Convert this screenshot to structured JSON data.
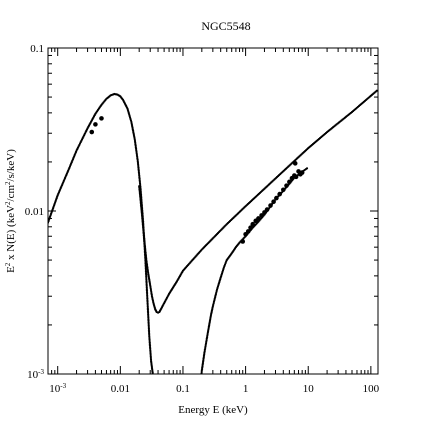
{
  "chart_data": {
    "type": "line",
    "title": "NGC5548",
    "xlabel": "Energy E (keV)",
    "ylabel": {
      "prefix": "E",
      "sup1": "2",
      "mid": " x N(E) (keV",
      "sup2": "2",
      "suffix": "/cm",
      "sup3": "2",
      "tail": "/s/keV)"
    },
    "xscale": "log",
    "yscale": "log",
    "xlim": [
      0.0007,
      130
    ],
    "ylim": [
      0.001,
      0.1
    ],
    "x_ticks": [
      {
        "value": 0.001,
        "base": "10",
        "exp": "-3"
      },
      {
        "value": 0.01,
        "label": "0.01"
      },
      {
        "value": 0.1,
        "label": "0.1"
      },
      {
        "value": 1,
        "label": "1"
      },
      {
        "value": 10,
        "label": "10"
      },
      {
        "value": 100,
        "label": "100"
      }
    ],
    "y_ticks": [
      {
        "value": 0.001,
        "base": "10",
        "exp": "-3"
      },
      {
        "value": 0.01,
        "label": "0.01"
      },
      {
        "value": 0.1,
        "label": "0.1"
      }
    ],
    "series": [
      {
        "style": "dotted-model",
        "x": [
          0.0007,
          0.001,
          0.0015,
          0.002,
          0.003,
          0.004,
          0.005,
          0.006,
          0.007,
          0.008,
          0.009,
          0.01,
          0.011,
          0.013,
          0.015,
          0.017,
          0.019,
          0.021,
          0.023,
          0.025,
          0.027,
          0.029,
          0.031,
          0.033,
          0.035
        ],
        "y": [
          0.0085,
          0.0125,
          0.018,
          0.0235,
          0.0322,
          0.0395,
          0.0448,
          0.0488,
          0.0512,
          0.0522,
          0.0518,
          0.0505,
          0.0482,
          0.0425,
          0.0352,
          0.0275,
          0.0202,
          0.0138,
          0.0088,
          0.0052,
          0.0029,
          0.0017,
          0.0012,
          0.001,
          0.0009
        ]
      },
      {
        "style": "dotted-model",
        "x": [
          0.02,
          0.021,
          0.022,
          0.023,
          0.024,
          0.025,
          0.026,
          0.028,
          0.03,
          0.032,
          0.034,
          0.036,
          0.038,
          0.04,
          0.042,
          0.045,
          0.05,
          0.06,
          0.08,
          0.1,
          0.2,
          0.5,
          1,
          2,
          5,
          10,
          20,
          50,
          130
        ],
        "y": [
          0.0142,
          0.0118,
          0.0098,
          0.0081,
          0.0068,
          0.0058,
          0.005,
          0.0041,
          0.0035,
          0.003,
          0.0027,
          0.0025,
          0.0024,
          0.00238,
          0.0024,
          0.00252,
          0.00272,
          0.0031,
          0.0037,
          0.0043,
          0.0058,
          0.0083,
          0.0107,
          0.0137,
          0.019,
          0.0243,
          0.0305,
          0.0405,
          0.0555
        ]
      },
      {
        "style": "dotted-model",
        "x": [
          0.19,
          0.2,
          0.22,
          0.25,
          0.28,
          0.3,
          0.35,
          0.4,
          0.45,
          0.5,
          0.6,
          0.7,
          0.8,
          1.0,
          1.3,
          1.6,
          2.0,
          2.5,
          3.0,
          4.0,
          5.0,
          6.0,
          8.0,
          10.0
        ],
        "y": [
          0.00085,
          0.00105,
          0.00135,
          0.0018,
          0.0023,
          0.0026,
          0.0033,
          0.0039,
          0.0045,
          0.005,
          0.0055,
          0.006,
          0.0064,
          0.007,
          0.0079,
          0.0086,
          0.0095,
          0.0107,
          0.0118,
          0.0133,
          0.0147,
          0.016,
          0.0174,
          0.0185
        ]
      },
      {
        "style": "data-points",
        "x": [
          0.0035,
          0.004,
          0.005,
          0.9,
          1.0,
          1.1,
          1.2,
          1.3,
          1.45,
          1.6,
          1.8,
          2.0,
          2.2,
          2.5,
          2.8,
          3.1,
          3.5,
          4.0,
          4.5,
          5.0,
          5.5,
          6.0,
          6.2,
          6.4,
          7.0,
          7.5,
          8.0
        ],
        "y": [
          0.0305,
          0.034,
          0.037,
          0.0065,
          0.0072,
          0.0075,
          0.0079,
          0.0083,
          0.0087,
          0.009,
          0.0094,
          0.0098,
          0.0102,
          0.0108,
          0.0114,
          0.012,
          0.0127,
          0.0135,
          0.0143,
          0.0151,
          0.0159,
          0.0165,
          0.0196,
          0.0162,
          0.0175,
          0.0168,
          0.0172
        ]
      }
    ],
    "grid": false,
    "legend": "none"
  }
}
